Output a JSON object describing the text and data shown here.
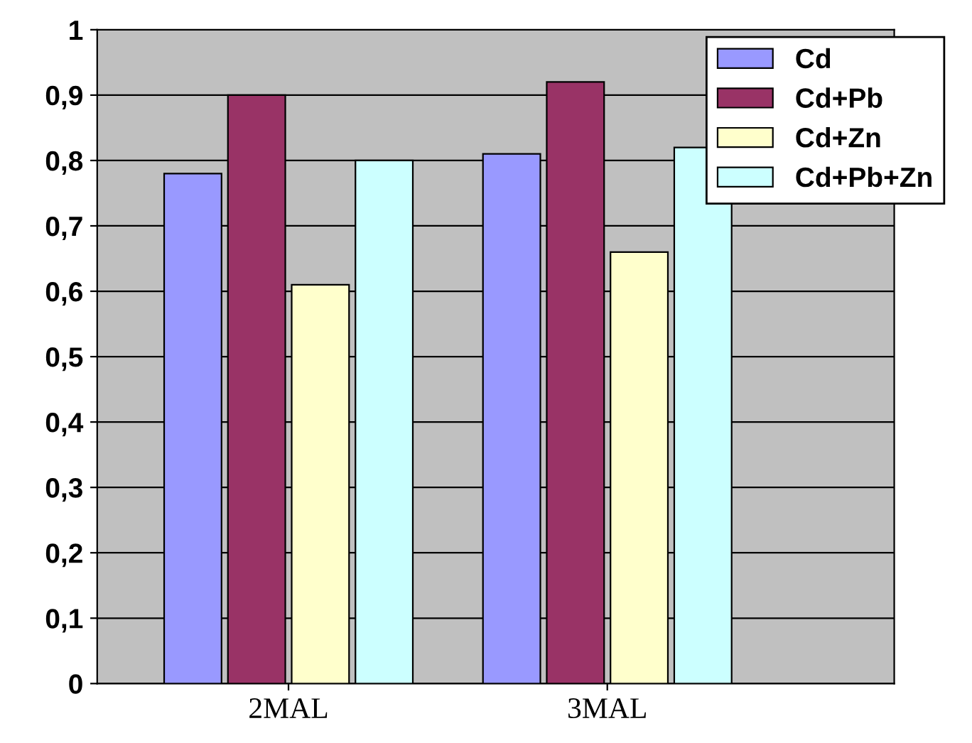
{
  "chart_data": {
    "type": "bar",
    "categories": [
      "2MAL",
      "3MAL"
    ],
    "series": [
      {
        "name": "Cd",
        "color": "#9999ff",
        "values": [
          0.78,
          0.81
        ]
      },
      {
        "name": "Cd+Pb",
        "color": "#993366",
        "values": [
          0.9,
          0.92
        ]
      },
      {
        "name": "Cd+Zn",
        "color": "#ffffcc",
        "values": [
          0.61,
          0.66
        ]
      },
      {
        "name": "Cd+Pb+Zn",
        "color": "#ccffff",
        "values": [
          0.8,
          0.82
        ]
      }
    ],
    "ylim": [
      0,
      1
    ],
    "yticks": [
      0,
      {
        "value": 0.1,
        "label": "0,1"
      },
      {
        "value": 0.2,
        "label": "0,2"
      },
      {
        "value": 0.3,
        "label": "0,3"
      },
      {
        "value": 0.4,
        "label": "0,4"
      },
      {
        "value": 0.5,
        "label": "0,5"
      },
      {
        "value": 0.6,
        "label": "0,6"
      },
      {
        "value": 0.7,
        "label": "0,7"
      },
      {
        "value": 0.8,
        "label": "0,8"
      },
      {
        "value": 0.9,
        "label": "0,9"
      },
      1
    ],
    "grid": "y",
    "legend": "top right"
  }
}
